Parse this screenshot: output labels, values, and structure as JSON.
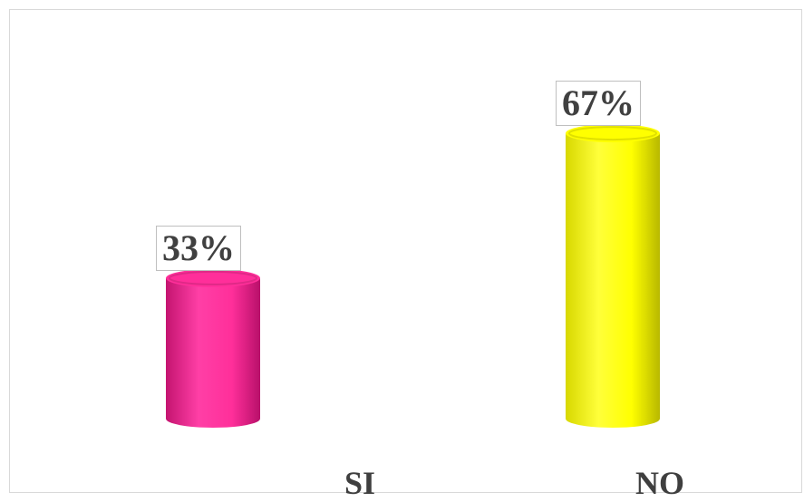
{
  "chart_data": {
    "type": "bar",
    "style": "3d-cylinder",
    "categories": [
      "SI",
      "NO"
    ],
    "values": [
      33,
      67
    ],
    "data_labels": [
      "33%",
      "67%"
    ],
    "colors": [
      "#ff2f9a",
      "#ffff00"
    ],
    "ylim": [
      0,
      100
    ],
    "grid": false,
    "legend": "none",
    "title": "",
    "xlabel": "",
    "ylabel": ""
  }
}
